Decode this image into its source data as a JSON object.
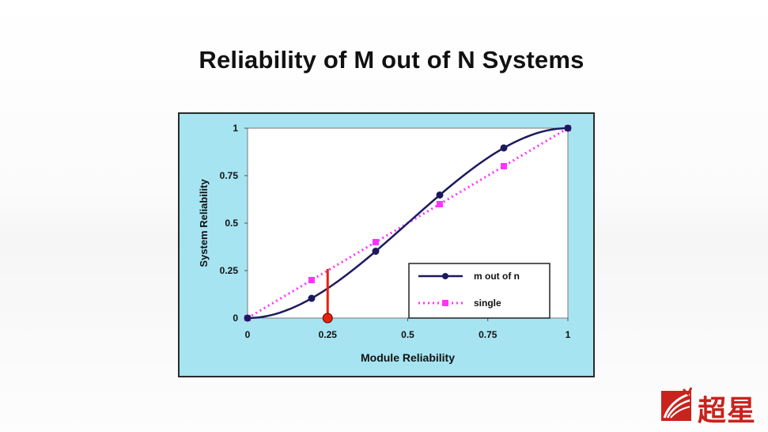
{
  "slide": {
    "title": "Reliability of M out of N Systems"
  },
  "colors": {
    "frame_bg": "#a6e4f2",
    "plot_bg": "#ffffff",
    "m_out_of_n": "#1c1a5e",
    "single": "#ff33ff",
    "marker_line": "#e8210c",
    "marker_dot": "#e8210c",
    "watermark": "#c8231d"
  },
  "watermark": {
    "text": "超星",
    "icon": "superstar-logo-icon"
  },
  "chart_data": {
    "type": "line",
    "title": "",
    "xlabel": "Module Reliability",
    "ylabel": "System Reliability",
    "xlim": [
      0,
      1
    ],
    "ylim": [
      0,
      1
    ],
    "x_ticks": [
      "0",
      "0.25",
      "0.5",
      "0.75",
      "1"
    ],
    "y_ticks": [
      "0",
      "0.25",
      "0.5",
      "0.75",
      "1"
    ],
    "grid": false,
    "legend_position": "bottom-right",
    "series": [
      {
        "name": "m out of n",
        "style": "solid",
        "marker": "circle",
        "x": [
          0,
          0.2,
          0.4,
          0.6,
          0.8,
          1.0
        ],
        "y": [
          0,
          0.104,
          0.352,
          0.648,
          0.896,
          1.0
        ]
      },
      {
        "name": "single",
        "style": "dotted",
        "marker": "square",
        "x": [
          0,
          0.2,
          0.4,
          0.6,
          0.8,
          1.0
        ],
        "y": [
          0,
          0.2,
          0.4,
          0.6,
          0.8,
          1.0
        ]
      }
    ],
    "annotation": {
      "type": "vertical-marker",
      "x": 0.25,
      "y_top": 0.25
    }
  }
}
